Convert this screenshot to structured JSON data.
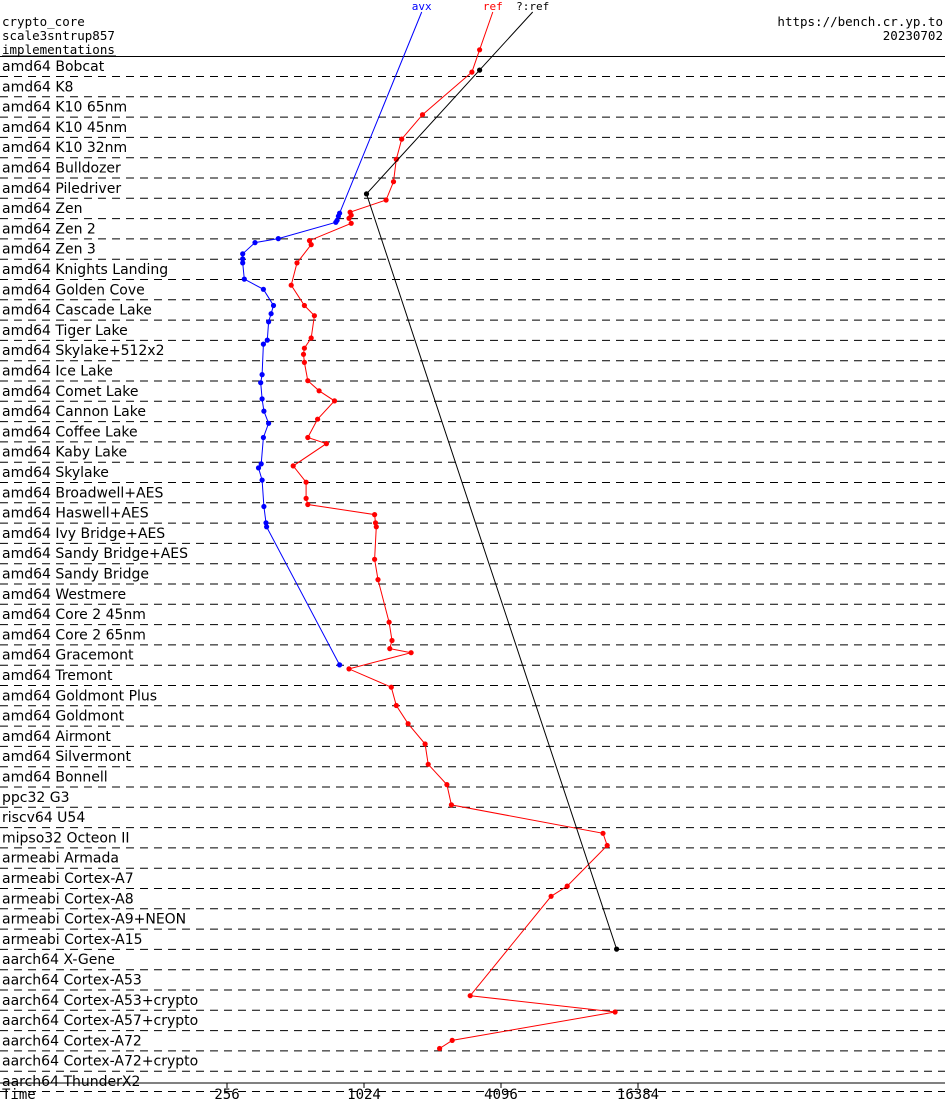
{
  "header": {
    "left_lines": [
      "crypto_core",
      "scale3sntrup857",
      "implementations"
    ],
    "right_lines": [
      "https://bench.cr.yp.to",
      "20230702"
    ]
  },
  "chart_data": {
    "type": "line",
    "x_scale": "log2",
    "xlabel": "Time",
    "x_ticks": [
      256,
      1024,
      4096,
      16384
    ],
    "xlim": [
      64,
      45000
    ],
    "grid": "dashed row separators",
    "legend": "labels at top of each series line",
    "categories": [
      "amd64 Bobcat",
      "amd64 K8",
      "amd64 K10 65nm",
      "amd64 K10 45nm",
      "amd64 K10 32nm",
      "amd64 Bulldozer",
      "amd64 Piledriver",
      "amd64 Zen",
      "amd64 Zen 2",
      "amd64 Zen 3",
      "amd64 Knights Landing",
      "amd64 Golden Cove",
      "amd64 Cascade Lake",
      "amd64 Tiger Lake",
      "amd64 Skylake+512x2",
      "amd64 Ice Lake",
      "amd64 Comet Lake",
      "amd64 Cannon Lake",
      "amd64 Coffee Lake",
      "amd64 Kaby Lake",
      "amd64 Skylake",
      "amd64 Broadwell+AES",
      "amd64 Haswell+AES",
      "amd64 Ivy Bridge+AES",
      "amd64 Sandy Bridge+AES",
      "amd64 Sandy Bridge",
      "amd64 Westmere",
      "amd64 Core 2 45nm",
      "amd64 Core 2 65nm",
      "amd64 Gracemont",
      "amd64 Tremont",
      "amd64 Goldmont Plus",
      "amd64 Goldmont",
      "amd64 Airmont",
      "amd64 Silvermont",
      "amd64 Bonnell",
      "ppc32 G3",
      "riscv64 U54",
      "mipso32 Octeon II",
      "armeabi Armada",
      "armeabi Cortex-A7",
      "armeabi Cortex-A8",
      "armeabi Cortex-A9+NEON",
      "armeabi Cortex-A15",
      "aarch64 X-Gene",
      "aarch64 Cortex-A53",
      "aarch64 Cortex-A53+crypto",
      "aarch64 Cortex-A57+crypto",
      "aarch64 Cortex-A72",
      "aarch64 Cortex-A72+crypto",
      "aarch64 ThunderX2"
    ],
    "series": [
      {
        "name": "avx",
        "color": "#0000ff",
        "points": [
          [
            7.25,
            800
          ],
          [
            7.4,
            790
          ],
          [
            7.6,
            780
          ],
          [
            7.7,
            770
          ],
          [
            8.5,
            430
          ],
          [
            8.7,
            340
          ],
          [
            9.25,
            300
          ],
          [
            9.5,
            300
          ],
          [
            9.7,
            300
          ],
          [
            10.5,
            305
          ],
          [
            11.0,
            370
          ],
          [
            11.8,
            410
          ],
          [
            12.2,
            400
          ],
          [
            12.6,
            390
          ],
          [
            13.5,
            385
          ],
          [
            13.7,
            370
          ],
          [
            15.2,
            365
          ],
          [
            15.6,
            360
          ],
          [
            16.4,
            365
          ],
          [
            17.0,
            372
          ],
          [
            17.6,
            390
          ],
          [
            18.3,
            370
          ],
          [
            19.6,
            362
          ],
          [
            19.8,
            352
          ],
          [
            20.4,
            365
          ],
          [
            21.7,
            372
          ],
          [
            22.5,
            380
          ],
          [
            22.7,
            382
          ],
          [
            29.5,
            800
          ]
        ]
      },
      {
        "name": "ref",
        "color": "#ff0000",
        "points": [
          [
            -0.8,
            3300
          ],
          [
            0.3,
            3050
          ],
          [
            2.4,
            1850
          ],
          [
            3.6,
            1500
          ],
          [
            4.6,
            1420
          ],
          [
            5.7,
            1380
          ],
          [
            6.6,
            1280
          ],
          [
            7.2,
            890
          ],
          [
            7.35,
            900
          ],
          [
            7.5,
            880
          ],
          [
            7.75,
            900
          ],
          [
            8.6,
            590
          ],
          [
            8.8,
            600
          ],
          [
            9.7,
            520
          ],
          [
            10.8,
            490
          ],
          [
            11.8,
            560
          ],
          [
            12.3,
            620
          ],
          [
            13.4,
            600
          ],
          [
            13.9,
            560
          ],
          [
            14.2,
            555
          ],
          [
            14.6,
            560
          ],
          [
            15.5,
            580
          ],
          [
            16.0,
            650
          ],
          [
            16.5,
            760
          ],
          [
            17.4,
            640
          ],
          [
            18.3,
            580
          ],
          [
            18.6,
            700
          ],
          [
            19.7,
            500
          ],
          [
            20.5,
            570
          ],
          [
            21.3,
            570
          ],
          [
            21.6,
            580
          ],
          [
            22.1,
            1140
          ],
          [
            22.5,
            1150
          ],
          [
            22.7,
            1160
          ],
          [
            24.3,
            1140
          ],
          [
            25.3,
            1180
          ],
          [
            27.4,
            1320
          ],
          [
            28.3,
            1360
          ],
          [
            28.7,
            1330
          ],
          [
            28.9,
            1650
          ],
          [
            29.7,
            880
          ],
          [
            30.6,
            1350
          ],
          [
            31.5,
            1420
          ],
          [
            32.4,
            1600
          ],
          [
            33.4,
            1900
          ],
          [
            34.4,
            1960
          ],
          [
            35.4,
            2370
          ],
          [
            36.4,
            2480
          ],
          [
            37.8,
            11500
          ],
          [
            38.4,
            12000
          ],
          [
            40.4,
            8000
          ],
          [
            40.9,
            6800
          ],
          [
            45.8,
            3000
          ],
          [
            46.6,
            13000
          ],
          [
            48.0,
            2500
          ],
          [
            48.4,
            2200
          ]
        ]
      },
      {
        "name": "?:ref",
        "color": "#000000",
        "points": [
          [
            0.2,
            3300
          ],
          [
            6.3,
            1050
          ],
          [
            43.5,
            13200
          ]
        ]
      }
    ]
  }
}
